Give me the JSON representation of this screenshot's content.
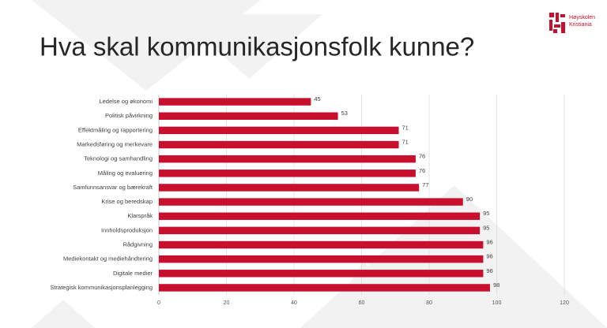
{
  "chart_data": {
    "type": "bar",
    "horizontal": true,
    "title": "Hva skal kommunikasjonsfolk kunne?",
    "categories": [
      "Ledelse og økonomi",
      "Politisk påvirkning",
      "Effektmåling og rapportering",
      "Markedsføring og merkevare",
      "Teknologi og samhandling",
      "Måling og evaluering",
      "Samfunnsansvar og bærekraft",
      "Krise og beredskap",
      "Klarspråk",
      "Innholdsproduksjon",
      "Rådgivning",
      "Mediekontakt og mediehåndtering",
      "Digitale medier",
      "Strategisk kommunikasjonsplanlegging"
    ],
    "values": [
      45,
      53,
      71,
      71,
      76,
      76,
      77,
      90,
      95,
      95,
      96,
      96,
      96,
      98
    ],
    "color": "#c8102e",
    "xlim": [
      0,
      120
    ],
    "xticks": [
      0,
      20,
      40,
      60,
      80,
      100,
      120
    ],
    "grid": true
  },
  "logo": {
    "lines": [
      "Høyskolen",
      "Kristiania"
    ]
  }
}
